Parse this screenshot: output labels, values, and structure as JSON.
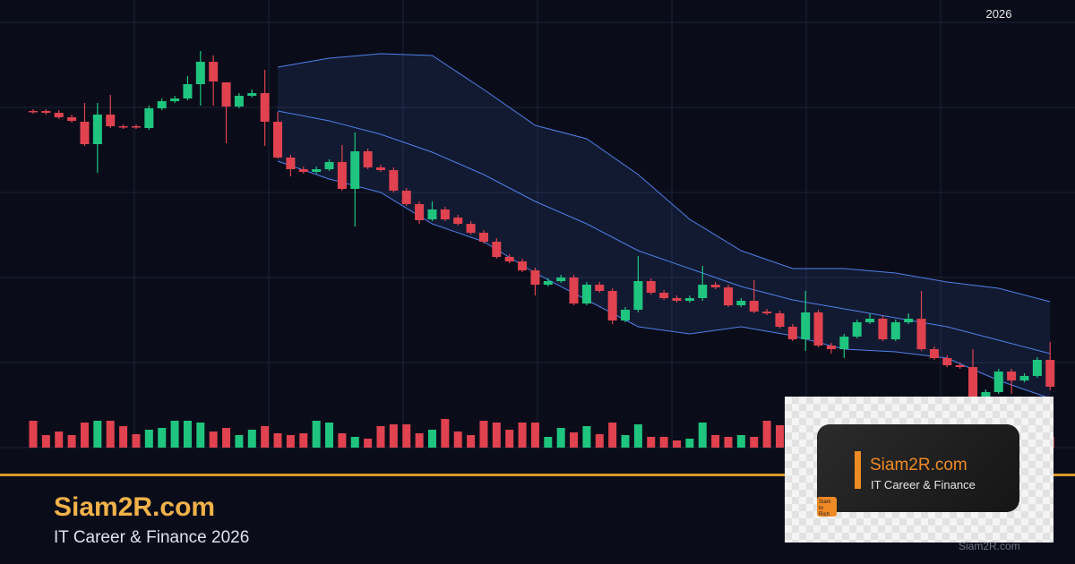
{
  "chart_data": {
    "type": "candlestick",
    "period_label": "2026",
    "up_color": "#1fc57f",
    "down_color": "#e0424f",
    "band_color": "#4f7fe8",
    "ylim": [
      0,
      480
    ],
    "y2lim": [
      0,
      480
    ],
    "open": [
      376,
      376,
      374,
      369,
      364,
      339,
      372,
      359,
      359,
      357,
      379,
      387,
      390,
      406,
      431,
      408,
      381,
      393,
      396,
      364,
      324,
      311,
      308,
      311,
      319,
      289,
      331,
      313,
      310,
      287,
      272,
      255,
      266,
      257,
      250,
      240,
      230,
      213,
      208,
      198,
      182,
      186,
      190,
      161,
      182,
      175,
      142,
      154,
      186,
      173,
      167,
      164,
      167,
      182,
      179,
      159,
      164,
      152,
      150,
      135,
      121,
      151,
      114,
      110,
      124,
      140,
      144,
      121,
      140,
      144,
      110,
      100,
      92,
      90,
      57,
      62,
      85,
      75,
      80,
      98
    ],
    "high": [
      378,
      378,
      377,
      372,
      385,
      385,
      394,
      361,
      361,
      382,
      390,
      393,
      415,
      443,
      438,
      408,
      396,
      400,
      422,
      375,
      327,
      314,
      314,
      322,
      338,
      352,
      334,
      316,
      313,
      290,
      275,
      275,
      269,
      260,
      253,
      243,
      234,
      216,
      211,
      201,
      189,
      193,
      193,
      185,
      185,
      178,
      157,
      214,
      189,
      176,
      170,
      170,
      203,
      185,
      182,
      167,
      187,
      155,
      153,
      138,
      175,
      154,
      117,
      127,
      143,
      150,
      147,
      143,
      150,
      175,
      113,
      103,
      95,
      110,
      65,
      88,
      88,
      83,
      101,
      118
    ],
    "low": [
      373,
      372,
      367,
      363,
      337,
      307,
      357,
      356,
      356,
      355,
      377,
      385,
      388,
      382,
      382,
      340,
      379,
      391,
      337,
      323,
      303,
      306,
      306,
      309,
      287,
      247,
      311,
      308,
      285,
      270,
      250,
      253,
      253,
      248,
      238,
      228,
      211,
      206,
      196,
      170,
      180,
      184,
      159,
      159,
      173,
      138,
      140,
      151,
      171,
      165,
      162,
      162,
      164,
      177,
      157,
      157,
      150,
      148,
      133,
      119,
      108,
      112,
      105,
      100,
      122,
      138,
      119,
      119,
      138,
      108,
      98,
      90,
      88,
      55,
      55,
      60,
      60,
      73,
      78,
      64
    ],
    "close": [
      375,
      374,
      369,
      365,
      339,
      372,
      359,
      358,
      358,
      379,
      387,
      390,
      406,
      431,
      409,
      381,
      393,
      396,
      364,
      324,
      311,
      308,
      311,
      319,
      289,
      331,
      313,
      310,
      287,
      272,
      254,
      266,
      255,
      250,
      240,
      230,
      213,
      208,
      198,
      182,
      186,
      190,
      161,
      182,
      175,
      142,
      154,
      186,
      173,
      167,
      164,
      167,
      182,
      179,
      159,
      164,
      152,
      150,
      135,
      121,
      151,
      114,
      110,
      124,
      140,
      144,
      121,
      140,
      144,
      110,
      100,
      92,
      90,
      57,
      62,
      85,
      75,
      80,
      98,
      68
    ],
    "volume": [
      30,
      14,
      18,
      14,
      28,
      30,
      30,
      24,
      15,
      20,
      22,
      30,
      30,
      28,
      18,
      22,
      14,
      20,
      24,
      16,
      14,
      16,
      30,
      28,
      16,
      12,
      10,
      24,
      26,
      26,
      16,
      20,
      32,
      18,
      14,
      30,
      28,
      20,
      28,
      28,
      12,
      22,
      17,
      24,
      15,
      28,
      14,
      26,
      12,
      12,
      8,
      10,
      28,
      14,
      12,
      14,
      12,
      30,
      25,
      22,
      28,
      20,
      18,
      24,
      22,
      26,
      14,
      20,
      18,
      22,
      26,
      20,
      16,
      22,
      18,
      24,
      20,
      16,
      14,
      12
    ],
    "bands": {
      "x": [
        19,
        23,
        27,
        31,
        35,
        39,
        43,
        47,
        51,
        55,
        59,
        63,
        67,
        71,
        75,
        79
      ],
      "upper": [
        425,
        435,
        440,
        438,
        400,
        360,
        345,
        305,
        255,
        220,
        200,
        200,
        195,
        185,
        178,
        163
      ],
      "middle": [
        376,
        365,
        350,
        330,
        305,
        275,
        250,
        220,
        200,
        180,
        165,
        155,
        145,
        135,
        120,
        105
      ],
      "lower": [
        320,
        300,
        285,
        250,
        230,
        195,
        165,
        135,
        127,
        135,
        125,
        110,
        107,
        100,
        75,
        55
      ]
    }
  },
  "branding": {
    "site": "Siam2R.com",
    "tagline": "IT Career & Finance 2026"
  },
  "logo": {
    "site": "Siam2R.com",
    "tagline": "IT Career & Finance",
    "badge": [
      "Siam",
      "to Rich"
    ],
    "watermark": "Siam2R.com"
  }
}
